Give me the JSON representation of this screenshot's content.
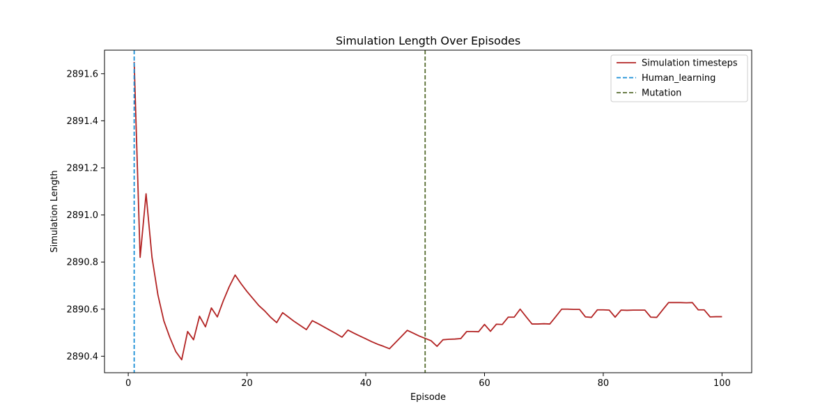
{
  "chart_data": {
    "type": "line",
    "title": "Simulation Length Over Episodes",
    "xlabel": "Episode",
    "ylabel": "Simulation Length",
    "xlim": [
      -4,
      105
    ],
    "ylim": [
      2890.33,
      2891.7
    ],
    "xticks": [
      0,
      20,
      40,
      60,
      80,
      100
    ],
    "yticks": [
      2890.4,
      2890.6,
      2890.8,
      2891.0,
      2891.2,
      2891.4,
      2891.6
    ],
    "grid": false,
    "legend_position": "top-right",
    "series": [
      {
        "name": "Simulation timesteps",
        "color": "#b22222",
        "style": "solid",
        "x": [
          1,
          2,
          3,
          4,
          5,
          6,
          7,
          8,
          9,
          10,
          11,
          12,
          13,
          14,
          15,
          16,
          17,
          18,
          19,
          20,
          21,
          22,
          23,
          24,
          25,
          26,
          27,
          28,
          29,
          30,
          31,
          32,
          33,
          34,
          35,
          36,
          37,
          38,
          39,
          40,
          41,
          42,
          43,
          44,
          45,
          46,
          47,
          48,
          49,
          50,
          51,
          52,
          53,
          54,
          55,
          56,
          57,
          58,
          59,
          60,
          61,
          62,
          63,
          64,
          65,
          66,
          67,
          68,
          69,
          70,
          71,
          72,
          73,
          74,
          75,
          76,
          77,
          78,
          79,
          80,
          81,
          82,
          83,
          84,
          85,
          86,
          87,
          88,
          89,
          90,
          91,
          92,
          93,
          94,
          95,
          96,
          97,
          98,
          99,
          100
        ],
        "y": [
          2891.65,
          2890.82,
          2891.09,
          2890.82,
          2890.66,
          2890.55,
          2890.48,
          2890.42,
          2890.385,
          2890.505,
          2890.47,
          2890.57,
          2890.525,
          2890.605,
          2890.567,
          2890.635,
          2890.695,
          2890.745,
          2890.708,
          2890.675,
          2890.645,
          2890.615,
          2890.592,
          2890.565,
          2890.543,
          2890.585,
          2890.566,
          2890.547,
          2890.53,
          2890.513,
          2890.551,
          2890.538,
          2890.524,
          2890.51,
          2890.496,
          2890.481,
          2890.511,
          2890.498,
          2890.486,
          2890.474,
          2890.462,
          2890.451,
          2890.442,
          2890.432,
          2890.458,
          2890.484,
          2890.51,
          2890.498,
          2890.486,
          2890.476,
          2890.466,
          2890.442,
          2890.47,
          2890.472,
          2890.473,
          2890.475,
          2890.505,
          2890.505,
          2890.504,
          2890.535,
          2890.506,
          2890.536,
          2890.535,
          2890.566,
          2890.566,
          2890.6,
          2890.568,
          2890.537,
          2890.537,
          2890.538,
          2890.537,
          2890.568,
          2890.6,
          2890.6,
          2890.599,
          2890.599,
          2890.567,
          2890.565,
          2890.597,
          2890.597,
          2890.596,
          2890.566,
          2890.596,
          2890.595,
          2890.596,
          2890.596,
          2890.596,
          2890.566,
          2890.565,
          2890.597,
          2890.628,
          2890.628,
          2890.628,
          2890.627,
          2890.628,
          2890.597,
          2890.597,
          2890.567,
          2890.568,
          2890.568
        ]
      },
      {
        "name": "Human_learning",
        "color": "#1a8fd6",
        "style": "dashed",
        "vline_x": 1
      },
      {
        "name": "Mutation",
        "color": "#556b2f",
        "style": "dashed",
        "vline_x": 50
      }
    ]
  }
}
